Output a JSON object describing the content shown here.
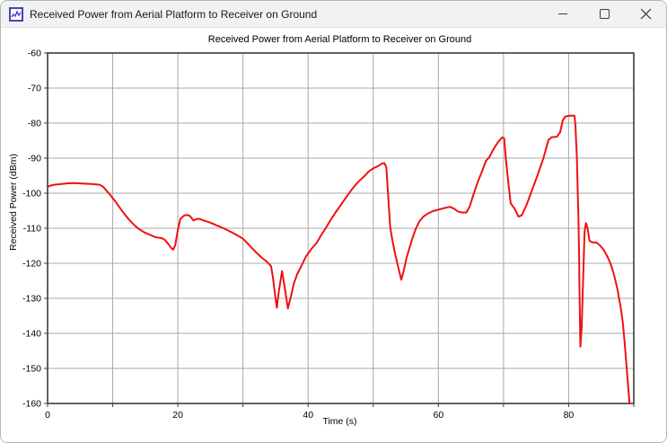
{
  "window": {
    "title": "Received Power from Aerial Platform to Receiver on Ground"
  },
  "colors": {
    "curve": "#f01010",
    "grid": "#a9a9a9",
    "plot_border": "#3c3c3c",
    "titlebar_bg": "#f2f2f2",
    "window_border": "#b5b5b5",
    "icon_blue": "#4343bd"
  },
  "chart_data": {
    "type": "line",
    "title": "Received Power from Aerial Platform to Receiver on Ground",
    "xlabel": "Time (s)",
    "ylabel": "Received Power (dBm)",
    "xlim": [
      0,
      90
    ],
    "ylim": [
      -160,
      -60
    ],
    "x_tick_label_values": [
      0,
      20,
      40,
      60,
      80
    ],
    "x_tick_values": [
      0,
      10,
      20,
      30,
      40,
      50,
      60,
      70,
      80,
      90
    ],
    "y_tick_values": [
      -60,
      -70,
      -80,
      -90,
      -100,
      -110,
      -120,
      -130,
      -140,
      -150,
      -160
    ],
    "grid": true,
    "legend": "none",
    "series": [
      {
        "name": "Received Power",
        "points": [
          [
            0,
            -98.2
          ],
          [
            0.5,
            -97.8
          ],
          [
            1,
            -97.6
          ],
          [
            2,
            -97.4
          ],
          [
            3,
            -97.2
          ],
          [
            4,
            -97.1
          ],
          [
            5,
            -97.2
          ],
          [
            6,
            -97.3
          ],
          [
            7,
            -97.4
          ],
          [
            8,
            -97.6
          ],
          [
            8.5,
            -98.1
          ],
          [
            9,
            -99.2
          ],
          [
            9.5,
            -100.2
          ],
          [
            10,
            -101.4
          ],
          [
            10.5,
            -102.6
          ],
          [
            11,
            -103.9
          ],
          [
            11.5,
            -105.2
          ],
          [
            12,
            -106.4
          ],
          [
            12.5,
            -107.5
          ],
          [
            13,
            -108.5
          ],
          [
            13.5,
            -109.4
          ],
          [
            14,
            -110.2
          ],
          [
            15,
            -111.3
          ],
          [
            16,
            -112.1
          ],
          [
            16.5,
            -112.5
          ],
          [
            17,
            -112.7
          ],
          [
            17.5,
            -112.8
          ],
          [
            18,
            -113.3
          ],
          [
            18.5,
            -114.4
          ],
          [
            19,
            -115.7
          ],
          [
            19.3,
            -116.1
          ],
          [
            19.6,
            -114.8
          ],
          [
            20,
            -110.5
          ],
          [
            20.4,
            -107.3
          ],
          [
            21,
            -106.3
          ],
          [
            21.5,
            -106.2
          ],
          [
            21.9,
            -106.6
          ],
          [
            22.4,
            -107.8
          ],
          [
            22.8,
            -107.4
          ],
          [
            23.3,
            -107.3
          ],
          [
            24,
            -107.8
          ],
          [
            25,
            -108.4
          ],
          [
            26,
            -109.2
          ],
          [
            27,
            -110.0
          ],
          [
            28,
            -110.9
          ],
          [
            29,
            -111.9
          ],
          [
            30,
            -113.0
          ],
          [
            30.7,
            -114.3
          ],
          [
            31.5,
            -115.9
          ],
          [
            32.3,
            -117.4
          ],
          [
            33,
            -118.6
          ],
          [
            33.7,
            -119.6
          ],
          [
            34.3,
            -120.8
          ],
          [
            34.6,
            -124.0
          ],
          [
            35,
            -130.0
          ],
          [
            35.2,
            -132.7
          ],
          [
            35.5,
            -128.0
          ],
          [
            36,
            -122.2
          ],
          [
            36.5,
            -128.0
          ],
          [
            36.9,
            -132.9
          ],
          [
            37.3,
            -130.0
          ],
          [
            37.8,
            -125.8
          ],
          [
            38.3,
            -123.2
          ],
          [
            39,
            -120.6
          ],
          [
            39.7,
            -118.0
          ],
          [
            40.5,
            -115.9
          ],
          [
            41.3,
            -114.2
          ],
          [
            42,
            -112.0
          ],
          [
            42.7,
            -110.0
          ],
          [
            43.5,
            -107.5
          ],
          [
            44.2,
            -105.5
          ],
          [
            45,
            -103.4
          ],
          [
            45.8,
            -101.3
          ],
          [
            46.6,
            -99.2
          ],
          [
            47.3,
            -97.6
          ],
          [
            47.8,
            -96.6
          ],
          [
            48.6,
            -95.2
          ],
          [
            49.3,
            -93.8
          ],
          [
            50,
            -92.9
          ],
          [
            50.8,
            -92.2
          ],
          [
            51.3,
            -91.6
          ],
          [
            51.7,
            -91.4
          ],
          [
            52,
            -92.5
          ],
          [
            52.2,
            -98.0
          ],
          [
            52.4,
            -104.0
          ],
          [
            52.6,
            -109.5
          ],
          [
            52.9,
            -113.0
          ],
          [
            53.3,
            -116.8
          ],
          [
            53.8,
            -120.8
          ],
          [
            54.3,
            -124.7
          ],
          [
            54.7,
            -122.0
          ],
          [
            55.1,
            -118.5
          ],
          [
            55.5,
            -116.0
          ],
          [
            56,
            -113.0
          ],
          [
            56.5,
            -110.3
          ],
          [
            57.1,
            -108.0
          ],
          [
            57.7,
            -106.7
          ],
          [
            58.4,
            -105.8
          ],
          [
            59.2,
            -105.1
          ],
          [
            60,
            -104.7
          ],
          [
            61,
            -104.2
          ],
          [
            61.8,
            -103.9
          ],
          [
            62.4,
            -104.4
          ],
          [
            63,
            -105.2
          ],
          [
            63.6,
            -105.5
          ],
          [
            64.3,
            -105.5
          ],
          [
            64.8,
            -103.8
          ],
          [
            65.4,
            -100.3
          ],
          [
            66,
            -97.0
          ],
          [
            66.7,
            -93.8
          ],
          [
            67.3,
            -90.8
          ],
          [
            67.8,
            -89.8
          ],
          [
            68.5,
            -87.3
          ],
          [
            69.2,
            -85.3
          ],
          [
            69.8,
            -84.1
          ],
          [
            70.1,
            -84.3
          ],
          [
            70.4,
            -91.0
          ],
          [
            70.8,
            -98.0
          ],
          [
            71.1,
            -102.9
          ],
          [
            71.7,
            -104.4
          ],
          [
            72.3,
            -106.7
          ],
          [
            72.8,
            -106.3
          ],
          [
            73.5,
            -103.5
          ],
          [
            74.3,
            -99.5
          ],
          [
            75.2,
            -95.0
          ],
          [
            76.1,
            -90.2
          ],
          [
            76.9,
            -84.8
          ],
          [
            77.4,
            -84.0
          ],
          [
            78.2,
            -83.9
          ],
          [
            78.7,
            -82.6
          ],
          [
            79.1,
            -79.2
          ],
          [
            79.5,
            -78.1
          ],
          [
            80.2,
            -77.9
          ],
          [
            80.9,
            -77.9
          ],
          [
            81.05,
            -81.0
          ],
          [
            81.15,
            -85.5
          ],
          [
            81.25,
            -89.0
          ],
          [
            81.35,
            -96.0
          ],
          [
            81.5,
            -106.5
          ],
          [
            81.6,
            -118.0
          ],
          [
            81.65,
            -125.5
          ],
          [
            81.8,
            -143.8
          ],
          [
            82,
            -138.0
          ],
          [
            82.2,
            -126.0
          ],
          [
            82.45,
            -111.0
          ],
          [
            82.65,
            -108.5
          ],
          [
            82.9,
            -110.0
          ],
          [
            83.2,
            -113.6
          ],
          [
            83.6,
            -114.0
          ],
          [
            84.3,
            -114.1
          ],
          [
            84.8,
            -114.9
          ],
          [
            85.4,
            -116.2
          ],
          [
            86,
            -118.3
          ],
          [
            86.5,
            -120.4
          ],
          [
            87,
            -123.5
          ],
          [
            87.5,
            -127.5
          ],
          [
            88,
            -132.8
          ],
          [
            88.3,
            -136.8
          ],
          [
            88.6,
            -142.5
          ],
          [
            88.9,
            -149.5
          ],
          [
            89.1,
            -154.5
          ],
          [
            89.35,
            -160.0
          ]
        ]
      }
    ]
  }
}
